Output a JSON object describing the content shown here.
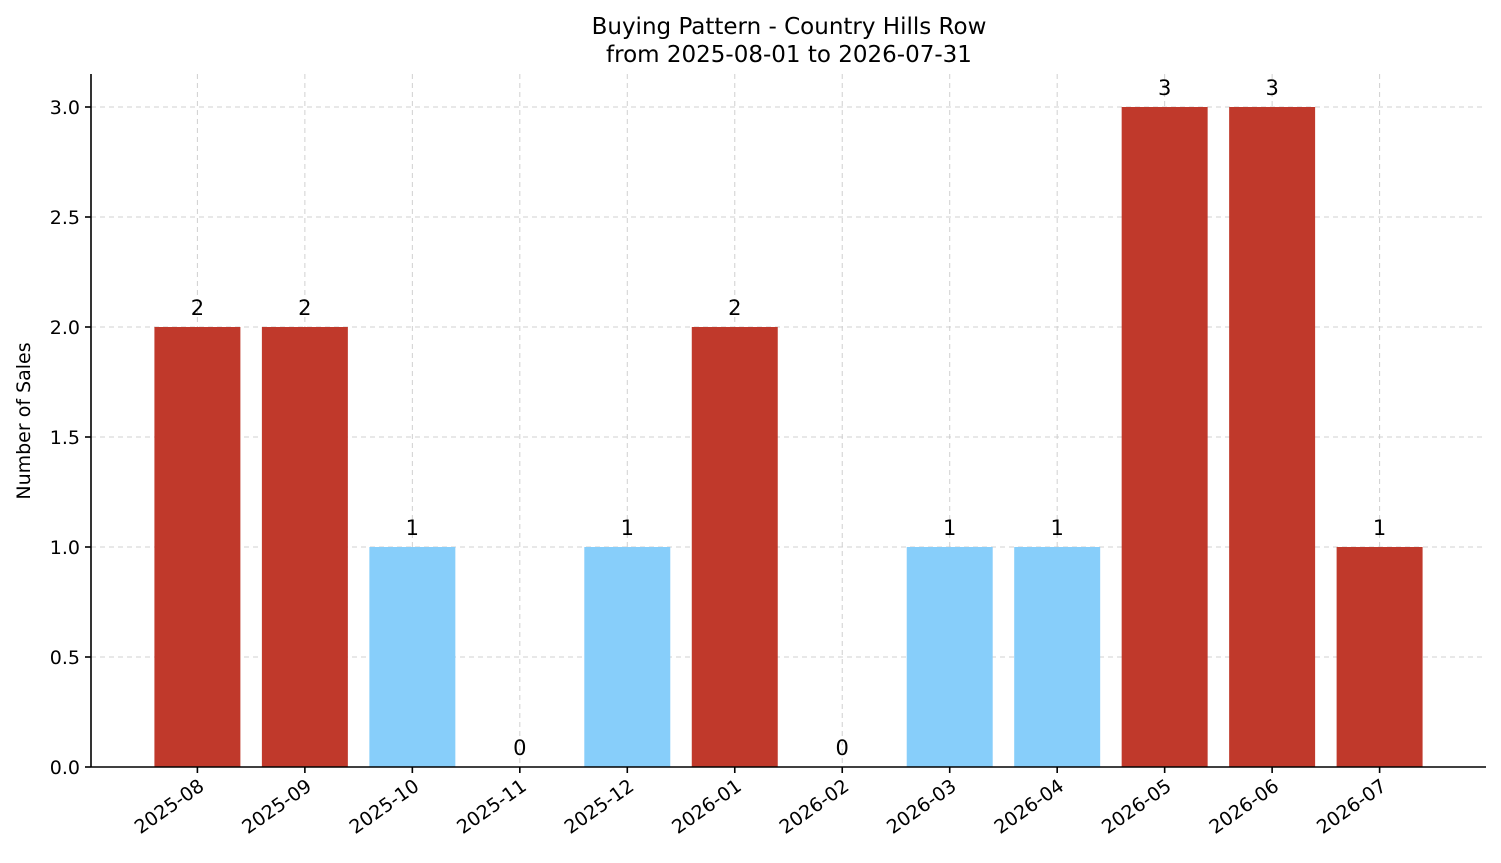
{
  "chart_data": {
    "type": "bar",
    "title": "Buying Pattern - Country Hills Row",
    "subtitle": "from 2025-08-01 to 2026-07-31",
    "xlabel": "",
    "ylabel": "Number of Sales",
    "categories": [
      "2025-08",
      "2025-09",
      "2025-10",
      "2025-11",
      "2025-12",
      "2026-01",
      "2026-02",
      "2026-03",
      "2026-04",
      "2026-05",
      "2026-06",
      "2026-07"
    ],
    "values": [
      2,
      2,
      1,
      0,
      1,
      2,
      0,
      1,
      1,
      3,
      3,
      1
    ],
    "data_labels": [
      "2",
      "2",
      "1",
      "0",
      "1",
      "2",
      "0",
      "1",
      "1",
      "3",
      "3",
      "1"
    ],
    "bar_colors": [
      "#c0392b",
      "#c0392b",
      "#87cefa",
      "#87cefa",
      "#87cefa",
      "#c0392b",
      "#87cefa",
      "#87cefa",
      "#87cefa",
      "#c0392b",
      "#c0392b",
      "#c0392b"
    ],
    "ylim": [
      0,
      3.15
    ],
    "yticks": [
      0,
      0.5,
      1,
      1.5,
      2,
      2.5,
      3
    ],
    "ytick_labels": [
      "0.0",
      "0.5",
      "1.0",
      "1.5",
      "2.0",
      "2.5",
      "3.0"
    ],
    "grid": true,
    "legend": "none"
  }
}
